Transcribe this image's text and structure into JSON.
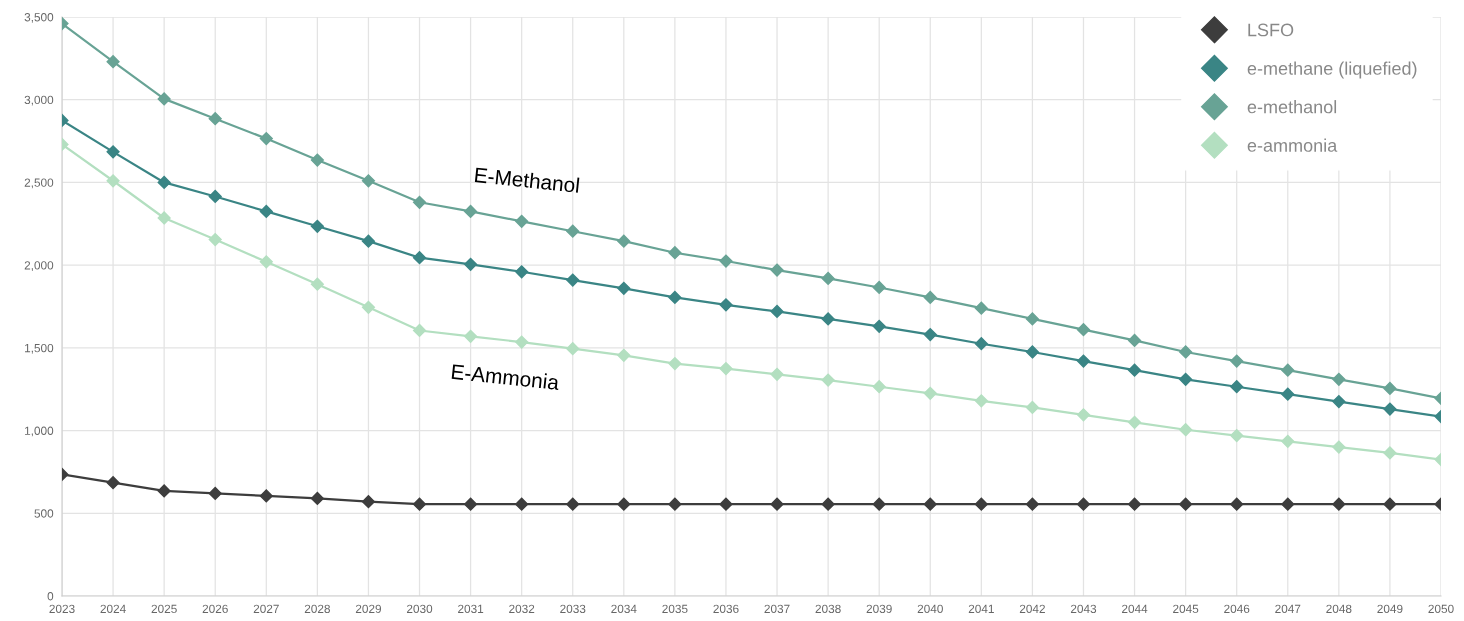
{
  "chart_data": {
    "type": "line",
    "x": [
      2023,
      2024,
      2025,
      2026,
      2027,
      2028,
      2029,
      2030,
      2031,
      2032,
      2033,
      2034,
      2035,
      2036,
      2037,
      2038,
      2039,
      2040,
      2041,
      2042,
      2043,
      2044,
      2045,
      2046,
      2047,
      2048,
      2049,
      2050
    ],
    "series": [
      {
        "name": "LSFO",
        "color": "#3d3d3d",
        "values": [
          735,
          685,
          635,
          620,
          605,
          590,
          570,
          555,
          555,
          555,
          555,
          555,
          555,
          555,
          555,
          555,
          555,
          555,
          555,
          555,
          555,
          555,
          555,
          555,
          555,
          555,
          555,
          555
        ]
      },
      {
        "name": "e-methane (liquefied)",
        "color": "#3a8585",
        "values": [
          2875,
          2685,
          2500,
          2415,
          2325,
          2235,
          2145,
          2045,
          2005,
          1960,
          1910,
          1860,
          1805,
          1760,
          1720,
          1675,
          1630,
          1580,
          1525,
          1475,
          1420,
          1365,
          1310,
          1265,
          1220,
          1175,
          1130,
          1085
        ]
      },
      {
        "name": "e-methanol",
        "color": "#68a395",
        "values": [
          3460,
          3230,
          3005,
          2885,
          2765,
          2635,
          2510,
          2380,
          2325,
          2265,
          2205,
          2145,
          2075,
          2025,
          1970,
          1920,
          1865,
          1805,
          1740,
          1675,
          1610,
          1545,
          1475,
          1420,
          1365,
          1310,
          1255,
          1195
        ]
      },
      {
        "name": "e-ammonia",
        "color": "#b3dfc0",
        "values": [
          2730,
          2510,
          2285,
          2155,
          2020,
          1885,
          1745,
          1605,
          1570,
          1535,
          1495,
          1455,
          1405,
          1375,
          1340,
          1305,
          1265,
          1225,
          1180,
          1140,
          1095,
          1050,
          1005,
          970,
          935,
          900,
          865,
          825
        ]
      }
    ],
    "xlim": [
      2023,
      2050
    ],
    "xticks": [
      2023,
      2024,
      2025,
      2026,
      2027,
      2028,
      2029,
      2030,
      2031,
      2032,
      2033,
      2034,
      2035,
      2036,
      2037,
      2038,
      2039,
      2040,
      2041,
      2042,
      2043,
      2044,
      2045,
      2046,
      2047,
      2048,
      2049,
      2050
    ],
    "ylim": [
      0,
      3500
    ],
    "yticks": [
      0,
      500,
      {
        "value": 1000,
        "label": "1,000"
      },
      {
        "value": 1500,
        "label": "1,500"
      },
      {
        "value": 2000,
        "label": "2,000"
      },
      {
        "value": 2500,
        "label": "2,500"
      },
      {
        "value": 3000,
        "label": "3,000"
      },
      {
        "value": 3500,
        "label": "3,500"
      }
    ],
    "annotations": [
      "E-Methanol",
      "E-Ammonia"
    ],
    "grid": true,
    "legend": "top right",
    "marker": "diamond",
    "line_style": "solid"
  }
}
